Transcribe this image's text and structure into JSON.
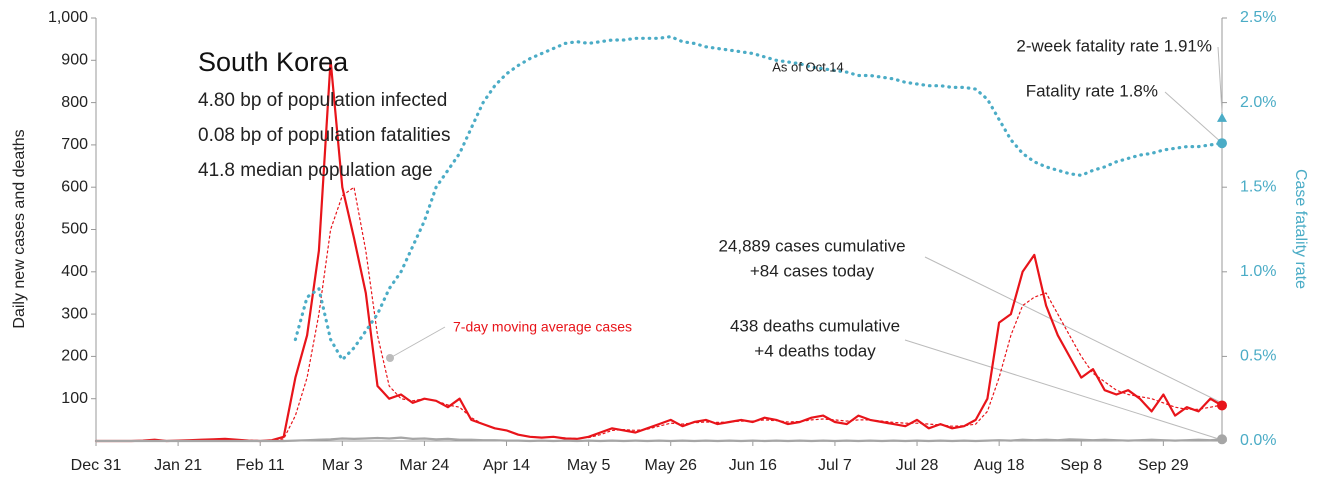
{
  "chart_data": {
    "type": "line",
    "y_label": "Daily new cases and deaths",
    "y2_label": "Case fatality rate",
    "x": [
      0,
      3,
      6,
      9,
      12,
      15,
      18,
      21,
      24,
      27,
      30,
      33,
      36,
      39,
      42,
      45,
      48,
      51,
      54,
      57,
      60,
      63,
      66,
      69,
      72,
      75,
      78,
      81,
      84,
      87,
      90,
      93,
      96,
      99,
      102,
      105,
      108,
      111,
      114,
      117,
      120,
      123,
      126,
      129,
      132,
      135,
      138,
      141,
      144,
      147,
      150,
      153,
      156,
      159,
      162,
      165,
      168,
      171,
      174,
      177,
      180,
      183,
      186,
      189,
      192,
      195,
      198,
      201,
      204,
      207,
      210,
      213,
      216,
      219,
      222,
      225,
      228,
      231,
      234,
      237,
      240,
      243,
      246,
      249,
      252,
      255,
      258,
      261,
      264,
      267,
      270,
      273,
      276,
      279,
      282,
      285,
      288
    ],
    "xlim": [
      0,
      288
    ],
    "xticks": [
      {
        "value": 0,
        "label": "Dec 31"
      },
      {
        "value": 21,
        "label": "Jan 21"
      },
      {
        "value": 42,
        "label": "Feb 11"
      },
      {
        "value": 63,
        "label": "Mar 3"
      },
      {
        "value": 84,
        "label": "Mar 24"
      },
      {
        "value": 105,
        "label": "Apr 14"
      },
      {
        "value": 126,
        "label": "May 5"
      },
      {
        "value": 147,
        "label": "May 26"
      },
      {
        "value": 168,
        "label": "Jun 16"
      },
      {
        "value": 189,
        "label": "Jul 7"
      },
      {
        "value": 210,
        "label": "Jul 28"
      },
      {
        "value": 231,
        "label": "Aug 18"
      },
      {
        "value": 252,
        "label": "Sep 8"
      },
      {
        "value": 273,
        "label": "Sep 29"
      }
    ],
    "ylim": [
      0,
      1000
    ],
    "yticks": [
      100,
      200,
      300,
      400,
      500,
      600,
      700,
      800,
      900,
      {
        "value": 1000,
        "label": "1,000"
      }
    ],
    "y2lim": [
      0,
      2.5
    ],
    "y2ticks": [
      {
        "value": 0,
        "label": "0.0%"
      },
      {
        "value": 0.5,
        "label": "0.5%"
      },
      {
        "value": 1,
        "label": "1.0%"
      },
      {
        "value": 1.5,
        "label": "1.5%"
      },
      {
        "value": 2,
        "label": "2.0%"
      },
      {
        "value": 2.5,
        "label": "2.5%"
      }
    ],
    "series": [
      {
        "color": "#e8141a",
        "style": "solid",
        "width": 2.2,
        "end_marker": true,
        "values": [
          0,
          0,
          0,
          0,
          1,
          3,
          0,
          1,
          2,
          3,
          4,
          5,
          3,
          1,
          0,
          2,
          10,
          150,
          250,
          450,
          900,
          600,
          480,
          350,
          130,
          100,
          110,
          90,
          100,
          95,
          80,
          100,
          50,
          40,
          30,
          25,
          15,
          10,
          8,
          10,
          6,
          5,
          10,
          20,
          30,
          25,
          20,
          30,
          40,
          50,
          35,
          45,
          50,
          40,
          45,
          50,
          45,
          55,
          50,
          40,
          45,
          55,
          60,
          45,
          40,
          60,
          50,
          45,
          40,
          35,
          50,
          30,
          40,
          30,
          35,
          50,
          100,
          280,
          300,
          400,
          440,
          320,
          250,
          200,
          150,
          170,
          120,
          110,
          120,
          100,
          70,
          110,
          60,
          80,
          70,
          100,
          84
        ]
      },
      {
        "color": "#e8141a",
        "style": "dotted",
        "width": 1.2,
        "values": [
          0,
          0,
          0,
          0,
          1,
          1,
          1,
          1,
          2,
          2,
          3,
          3,
          3,
          2,
          1,
          1,
          5,
          60,
          150,
          300,
          500,
          580,
          600,
          450,
          250,
          130,
          100,
          95,
          100,
          95,
          85,
          80,
          55,
          40,
          30,
          25,
          15,
          10,
          9,
          9,
          7,
          6,
          8,
          15,
          25,
          27,
          25,
          28,
          35,
          42,
          40,
          43,
          45,
          44,
          45,
          47,
          47,
          50,
          48,
          45,
          46,
          50,
          52,
          50,
          47,
          50,
          50,
          47,
          44,
          42,
          42,
          40,
          38,
          35,
          36,
          40,
          70,
          150,
          250,
          320,
          340,
          350,
          300,
          250,
          200,
          160,
          140,
          120,
          110,
          105,
          100,
          90,
          80,
          75,
          75,
          80,
          85
        ]
      },
      {
        "color": "#a6a6a6",
        "style": "solid",
        "width": 2.2,
        "end_marker": true,
        "values": [
          0,
          0,
          0,
          0,
          0,
          0,
          0,
          0,
          0,
          0,
          0,
          0,
          0,
          0,
          0,
          0,
          0,
          1,
          2,
          3,
          4,
          6,
          5,
          6,
          7,
          6,
          8,
          5,
          6,
          4,
          5,
          3,
          3,
          2,
          2,
          1,
          1,
          0,
          1,
          0,
          1,
          0,
          1,
          0,
          1,
          0,
          1,
          0,
          1,
          0,
          1,
          0,
          1,
          0,
          1,
          0,
          1,
          0,
          1,
          0,
          1,
          0,
          1,
          0,
          1,
          0,
          1,
          0,
          1,
          0,
          1,
          0,
          1,
          0,
          1,
          0,
          1,
          2,
          1,
          3,
          2,
          3,
          2,
          4,
          3,
          2,
          3,
          2,
          1,
          2,
          3,
          2,
          1,
          2,
          3,
          2,
          4
        ]
      },
      {
        "color": "#4bacc6",
        "style": "dotted",
        "width": 3.2,
        "axis": "y2",
        "end_marker": true,
        "values": [
          null,
          null,
          null,
          null,
          null,
          null,
          null,
          null,
          null,
          null,
          null,
          null,
          null,
          null,
          null,
          null,
          null,
          0.6,
          0.85,
          0.9,
          0.6,
          0.48,
          0.55,
          0.65,
          0.75,
          0.9,
          1.0,
          1.15,
          1.3,
          1.5,
          1.6,
          1.7,
          1.85,
          2.0,
          2.1,
          2.17,
          2.22,
          2.26,
          2.29,
          2.32,
          2.35,
          2.36,
          2.35,
          2.36,
          2.37,
          2.37,
          2.38,
          2.38,
          2.38,
          2.39,
          2.36,
          2.35,
          2.33,
          2.32,
          2.31,
          2.3,
          2.29,
          2.27,
          2.25,
          2.24,
          2.23,
          2.21,
          2.2,
          2.19,
          2.18,
          2.16,
          2.16,
          2.15,
          2.14,
          2.12,
          2.11,
          2.1,
          2.1,
          2.09,
          2.09,
          2.08,
          2.02,
          1.9,
          1.78,
          1.7,
          1.65,
          1.62,
          1.6,
          1.58,
          1.57,
          1.6,
          1.62,
          1.65,
          1.67,
          1.69,
          1.7,
          1.72,
          1.73,
          1.74,
          1.74,
          1.75,
          1.76
        ]
      }
    ],
    "two_week_fatality": {
      "value": 1.91,
      "color": "#4bacc6"
    },
    "annotations": [
      {
        "text": "South Korea"
      },
      {
        "text": "4.80 bp of population infected"
      },
      {
        "text": "0.08 bp of population fatalities"
      },
      {
        "text": "41.8 median population age"
      },
      {
        "text": "As of Oct 14"
      },
      {
        "text": "7-day moving average cases"
      },
      {
        "text": "24,889 cases cumulative"
      },
      {
        "text": "+84 cases today"
      },
      {
        "text": "438 deaths cumulative"
      },
      {
        "text": "+4 deaths today"
      },
      {
        "text": "Fatality rate 1.8%"
      },
      {
        "text": "2-week fatality rate 1.91%"
      }
    ]
  }
}
